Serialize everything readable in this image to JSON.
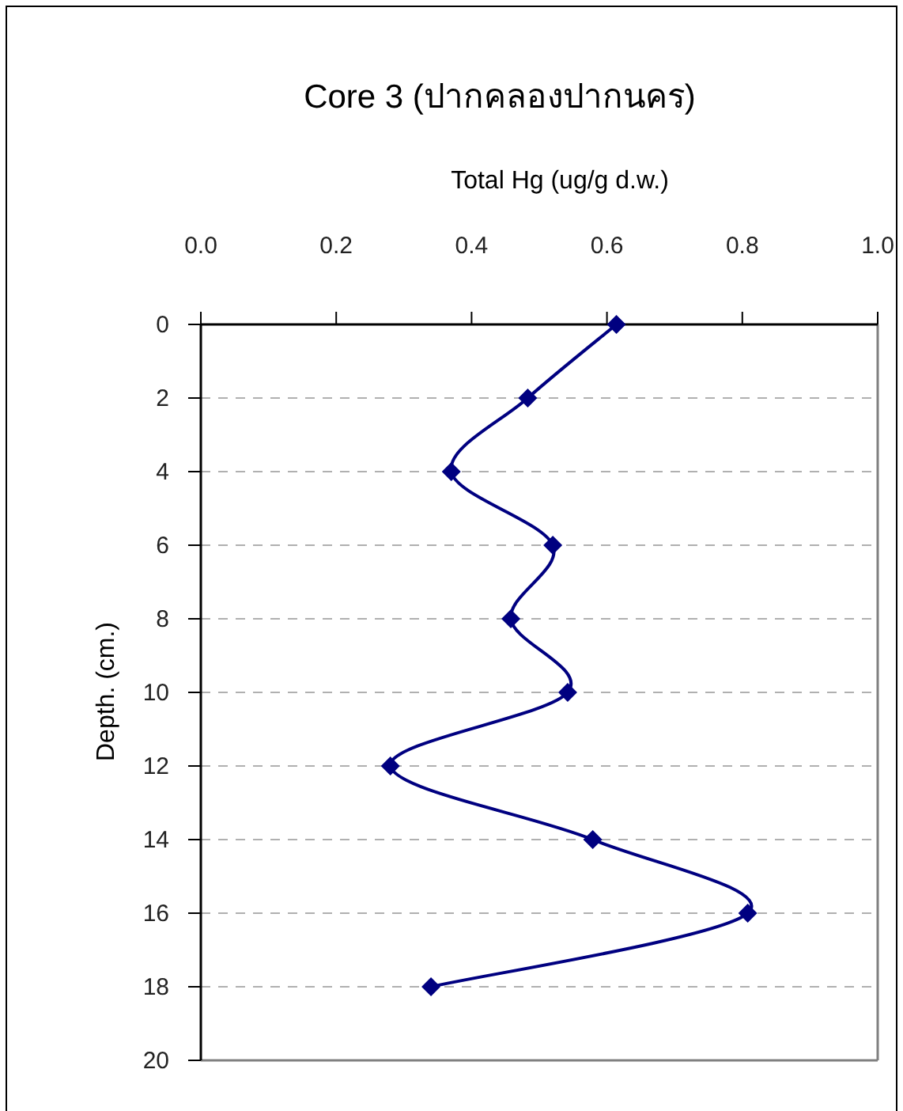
{
  "chart_data": {
    "type": "line",
    "title": "Core 3 (ปากคลองปากนคร)",
    "xlabel": "Total Hg (ug/g d.w.)",
    "ylabel": "Depth. (cm.)",
    "series": [
      {
        "color": "#000080",
        "x": [
          0.614,
          0.483,
          0.37,
          0.52,
          0.458,
          0.542,
          0.28,
          0.579,
          0.808,
          0.34
        ],
        "values": [
          0,
          2,
          4,
          6,
          8,
          10,
          12,
          14,
          16,
          18
        ]
      }
    ],
    "xlim": [
      0,
      1
    ],
    "xticks": [
      {
        "value": 0,
        "label": "0.0"
      },
      {
        "value": 0.2,
        "label": "0.2"
      },
      {
        "value": 0.4,
        "label": "0.4"
      },
      {
        "value": 0.6,
        "label": "0.6"
      },
      {
        "value": 0.8,
        "label": "0.8"
      },
      {
        "value": 1,
        "label": "1.0"
      }
    ],
    "ylim": [
      20,
      0
    ],
    "yticks": [
      0,
      2,
      4,
      6,
      8,
      10,
      12,
      14,
      16,
      18,
      20
    ],
    "grid": "y",
    "marker": "diamond",
    "line_style": "solid"
  }
}
